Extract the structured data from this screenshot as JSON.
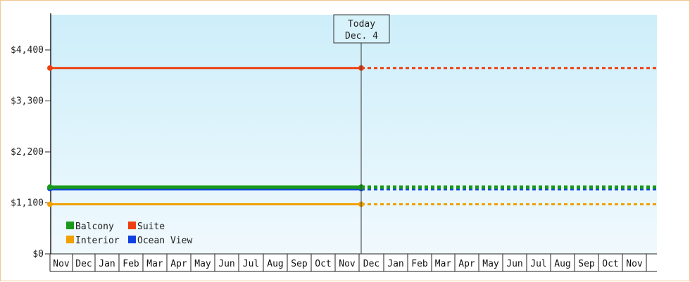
{
  "chart_data": {
    "type": "line",
    "title": "",
    "xlabel": "",
    "ylabel": "",
    "ylim": [
      0,
      4400
    ],
    "y_ticks": [
      "$0",
      "$1,100",
      "$2,200",
      "$3,300",
      "$4,400"
    ],
    "months": [
      "Nov",
      "Dec",
      "Jan",
      "Feb",
      "Mar",
      "Apr",
      "May",
      "Jun",
      "Jul",
      "Aug",
      "Sep",
      "Oct",
      "Nov",
      "Dec",
      "Jan",
      "Feb",
      "Mar",
      "Apr",
      "May",
      "Jun",
      "Jul",
      "Aug",
      "Sep",
      "Oct",
      "Nov"
    ],
    "today_marker": {
      "title": "Today",
      "date": "Dec. 4"
    },
    "series": [
      {
        "name": "Balcony",
        "color": "#1a9a1a",
        "value": 1440
      },
      {
        "name": "Suite",
        "color": "#ee3f10",
        "value": 4010
      },
      {
        "name": "Interior",
        "color": "#f0a000",
        "value": 1070
      },
      {
        "name": "Ocean View",
        "color": "#1040e0",
        "value": 1410
      }
    ],
    "legend_placement": "bottom-left",
    "grid": false,
    "colors": {
      "plot_bg_top": "#cdeefa",
      "plot_bg_bottom": "#f0f9fd"
    }
  }
}
